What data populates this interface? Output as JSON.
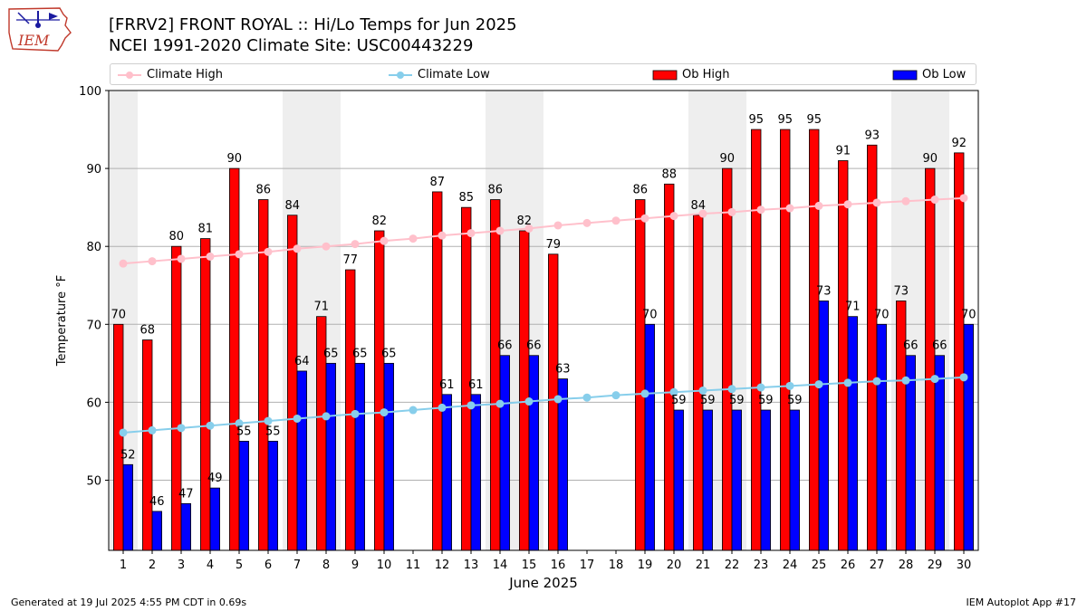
{
  "header": {
    "title_line1": "[FRRV2] FRONT ROYAL :: Hi/Lo Temps for Jun 2025",
    "title_line2": "NCEI 1991-2020 Climate Site: USC00443229",
    "logo_text": "IEM"
  },
  "footer": {
    "left": "Generated at 19 Jul 2025 4:55 PM CDT in 0.69s",
    "right": "IEM Autoplot App #17"
  },
  "legend": {
    "climate_high": "Climate High",
    "climate_low": "Climate Low",
    "ob_high": "Ob High",
    "ob_low": "Ob Low"
  },
  "colors": {
    "ob_high": "#ff0000",
    "ob_low": "#0000ff",
    "climate_high": "#ffc0cb",
    "climate_low": "#87ceeb",
    "weekend_shade": "#eeeeee",
    "grid": "#b0b0b0"
  },
  "chart_data": {
    "type": "bar",
    "xlabel": "June 2025",
    "ylabel": "Temperature °F",
    "ylim": [
      41,
      100
    ],
    "yticks": [
      50,
      60,
      70,
      80,
      90,
      100
    ],
    "grid": "horizontal",
    "legend_position": "top",
    "categories": [
      "1",
      "2",
      "3",
      "4",
      "5",
      "6",
      "7",
      "8",
      "9",
      "10",
      "11",
      "12",
      "13",
      "14",
      "15",
      "16",
      "17",
      "18",
      "19",
      "20",
      "21",
      "22",
      "23",
      "24",
      "25",
      "26",
      "27",
      "28",
      "29",
      "30"
    ],
    "shaded_days": [
      1,
      7,
      8,
      14,
      15,
      21,
      22,
      28,
      29
    ],
    "series": [
      {
        "name": "Ob High",
        "kind": "bar",
        "values": [
          70,
          68,
          80,
          81,
          90,
          86,
          84,
          71,
          77,
          82,
          null,
          87,
          85,
          86,
          82,
          79,
          null,
          null,
          86,
          88,
          84,
          90,
          95,
          95,
          95,
          91,
          93,
          73,
          90,
          92
        ]
      },
      {
        "name": "Ob Low",
        "kind": "bar",
        "values": [
          52,
          46,
          47,
          49,
          55,
          55,
          64,
          65,
          65,
          65,
          null,
          61,
          61,
          66,
          66,
          63,
          null,
          null,
          70,
          59,
          59,
          59,
          59,
          59,
          73,
          71,
          70,
          66,
          66,
          70
        ]
      },
      {
        "name": "Climate High",
        "kind": "line",
        "values": [
          77.8,
          78.1,
          78.4,
          78.7,
          79.0,
          79.3,
          79.7,
          80.0,
          80.3,
          80.7,
          81.0,
          81.4,
          81.7,
          82.0,
          82.3,
          82.7,
          83.0,
          83.3,
          83.6,
          83.9,
          84.2,
          84.4,
          84.7,
          84.9,
          85.2,
          85.4,
          85.6,
          85.8,
          86.0,
          86.2
        ]
      },
      {
        "name": "Climate Low",
        "kind": "line",
        "values": [
          56.1,
          56.4,
          56.7,
          57.0,
          57.3,
          57.6,
          57.9,
          58.2,
          58.5,
          58.7,
          59.0,
          59.3,
          59.6,
          59.8,
          60.1,
          60.4,
          60.6,
          60.9,
          61.1,
          61.3,
          61.5,
          61.7,
          61.9,
          62.1,
          62.3,
          62.5,
          62.7,
          62.8,
          63.0,
          63.2
        ]
      }
    ]
  }
}
